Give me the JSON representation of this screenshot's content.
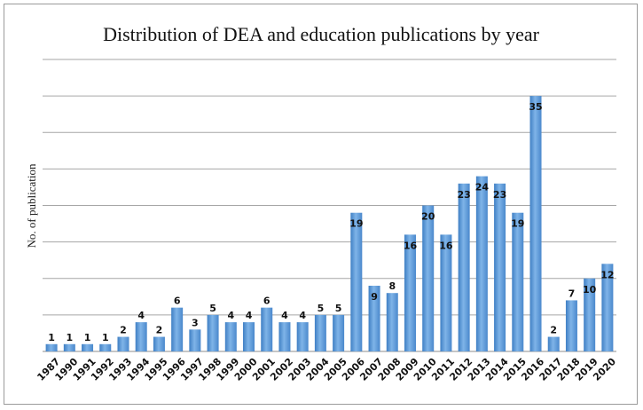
{
  "chart_data": {
    "type": "bar",
    "title": "Distribution of DEA and education publications by year",
    "xlabel": "",
    "ylabel": "No. of publication",
    "categories": [
      "1987",
      "1990",
      "1991",
      "1992",
      "1993",
      "1994",
      "1995",
      "1996",
      "1997",
      "1998",
      "1999",
      "2000",
      "2001",
      "2002",
      "2003",
      "2004",
      "2005",
      "2006",
      "2007",
      "2008",
      "2009",
      "2010",
      "2011",
      "2012",
      "2013",
      "2014",
      "2015",
      "2016",
      "2017",
      "2018",
      "2019",
      "2020"
    ],
    "values": [
      1,
      1,
      1,
      1,
      2,
      4,
      2,
      6,
      3,
      5,
      4,
      4,
      6,
      4,
      4,
      5,
      5,
      19,
      9,
      8,
      16,
      20,
      16,
      23,
      24,
      23,
      19,
      35,
      2,
      7,
      10,
      12
    ],
    "ylim": [
      0,
      40
    ],
    "grid": true,
    "legend": "none",
    "bar_color": "#5b9bd5"
  }
}
